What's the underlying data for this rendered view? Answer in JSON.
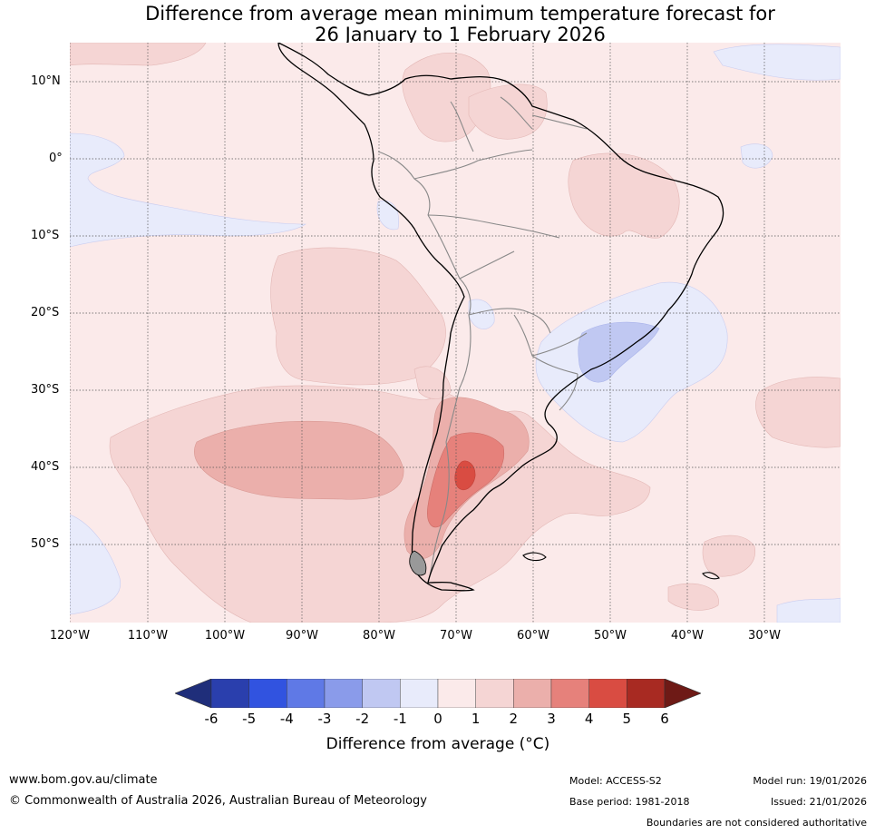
{
  "title": {
    "line1": "Difference from average mean minimum temperature forecast for",
    "line2": "26 January to 1 February 2026"
  },
  "map": {
    "lat_labels": [
      "10°N",
      "0°",
      "10°S",
      "20°S",
      "30°S",
      "40°S",
      "50°S"
    ],
    "lon_labels": [
      "120°W",
      "110°W",
      "100°W",
      "90°W",
      "80°W",
      "70°W",
      "60°W",
      "50°W",
      "40°W",
      "30°W"
    ]
  },
  "colorbar": {
    "ticks": [
      "-6",
      "-5",
      "-4",
      "-3",
      "-2",
      "-1",
      "0",
      "1",
      "2",
      "3",
      "4",
      "5",
      "6"
    ],
    "colors": [
      "#1f2e7a",
      "#2a3fad",
      "#3153e0",
      "#5f79e6",
      "#8a9bea",
      "#c0c8f2",
      "#e8ebfb",
      "#fbeaea",
      "#f5d5d4",
      "#ebafab",
      "#e6817b",
      "#d94c42",
      "#a82a22",
      "#6e1a16"
    ],
    "label": "Difference from average (°C)"
  },
  "footer": {
    "website": "www.bom.gov.au/climate",
    "copyright": "© Commonwealth of Australia 2026, Australian Bureau of Meteorology",
    "model": "Model: ACCESS-S2",
    "base_period": "Base period: 1981-2018",
    "model_run": "Model run: 19/01/2026",
    "issued": "Issued: 21/01/2026",
    "boundaries": "Boundaries are not considered authoritative"
  }
}
